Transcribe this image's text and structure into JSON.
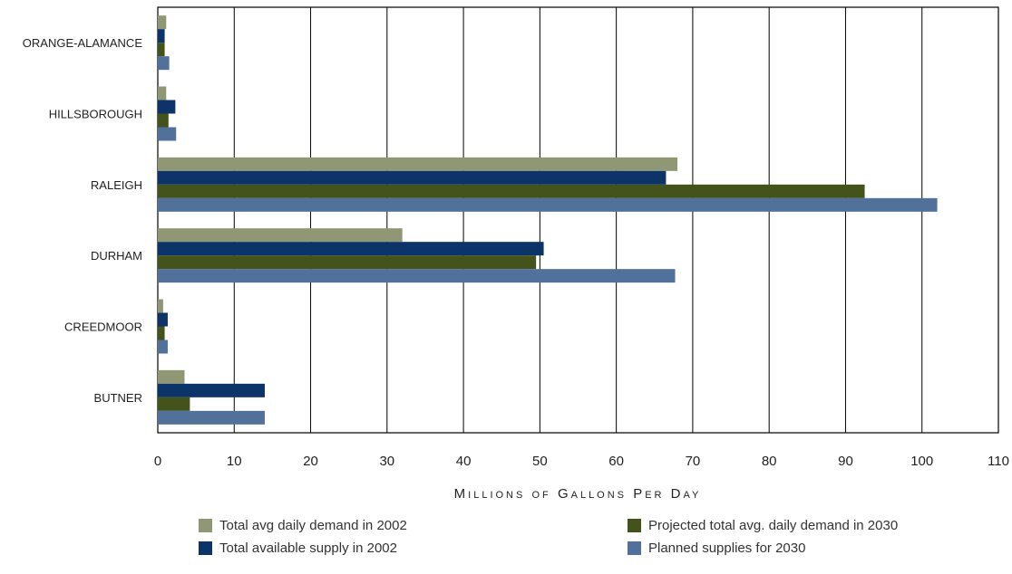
{
  "chart_data": {
    "type": "bar",
    "orientation": "horizontal",
    "categories": [
      "ORANGE-ALAMANCE",
      "HILLSBOROUGH",
      "RALEIGH",
      "DURHAM",
      "CREEDMOOR",
      "BUTNER"
    ],
    "series": [
      {
        "name": "Total avg daily demand in 2002",
        "color": "#8f9774",
        "values": [
          1.1,
          1.1,
          68,
          32,
          0.7,
          3.5
        ]
      },
      {
        "name": "Total available supply in 2002",
        "color": "#0c3468",
        "values": [
          0.9,
          2.3,
          66.5,
          50.5,
          1.3,
          14
        ]
      },
      {
        "name": "Projected total avg. daily demand in 2030",
        "color": "#44521b",
        "values": [
          0.9,
          1.4,
          92.5,
          49.5,
          0.9,
          4.2
        ]
      },
      {
        "name": "Planned supplies for 2030",
        "color": "#51709a",
        "values": [
          1.5,
          2.4,
          102,
          67.7,
          1.3,
          14
        ]
      }
    ],
    "xlabel": "Millions of Gallons Per Day",
    "xlim": [
      0,
      110
    ],
    "xticks": [
      "0",
      "10",
      "20",
      "30",
      "40",
      "50",
      "60",
      "70",
      "80",
      "90",
      "100",
      "110"
    ],
    "grid": "vertical",
    "legend_position": "bottom"
  }
}
